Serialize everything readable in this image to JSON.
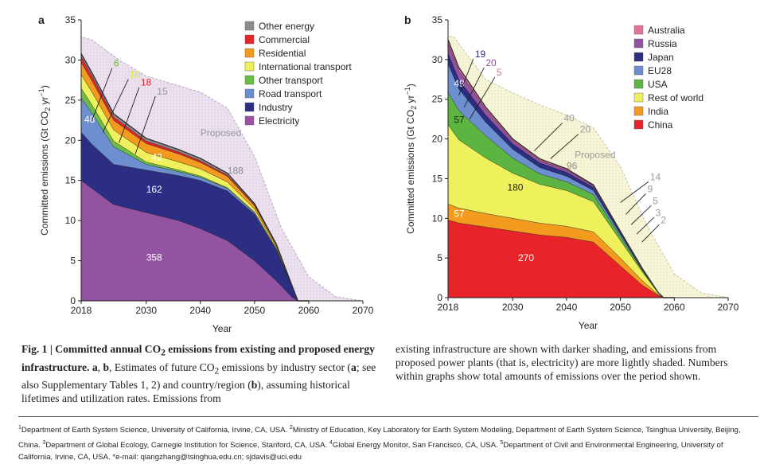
{
  "panels": [
    {
      "letter": "a",
      "ylabel_main": "Committed emissions (Gt CO",
      "ylabel_sub": "2",
      "ylabel_mid": " yr",
      "ylabel_sup": "−1",
      "ylabel_end": ")",
      "xlabel": "Year",
      "proposed_label": "Proposed"
    },
    {
      "letter": "b",
      "ylabel_main": "Committed emissions (Gt CO",
      "ylabel_sub": "2",
      "ylabel_mid": " yr",
      "ylabel_sup": "−1",
      "ylabel_end": ")",
      "xlabel": "Year",
      "proposed_label": "Proposed"
    }
  ],
  "chart_data": [
    {
      "type": "area",
      "panel": "a",
      "x_ticks": [
        "2018",
        "2030",
        "2040",
        "2050",
        "2060",
        "2070"
      ],
      "y_ticks": [
        "0",
        "5",
        "10",
        "15",
        "20",
        "25",
        "30",
        "35"
      ],
      "xlim": [
        2018,
        2070
      ],
      "ylim": [
        0,
        35
      ],
      "xlabel": "Year",
      "ylabel": "Committed emissions (Gt CO2 yr−1)",
      "legend": [
        {
          "name": "Other energy",
          "color": "#8c8c8c"
        },
        {
          "name": "Commercial",
          "color": "#e8232a"
        },
        {
          "name": "Residential",
          "color": "#f39b1e"
        },
        {
          "name": "International transport",
          "color": "#eef05c"
        },
        {
          "name": "Other transport",
          "color": "#6cbc45"
        },
        {
          "name": "Road transport",
          "color": "#6e8fcf"
        },
        {
          "name": "Industry",
          "color": "#2b2e83"
        },
        {
          "name": "Electricity",
          "color": "#9a52a1"
        }
      ],
      "legend_position": "top-right",
      "years": [
        2018,
        2020,
        2024,
        2030,
        2036,
        2040,
        2045,
        2050,
        2054,
        2057,
        2058,
        2060
      ],
      "series": [
        {
          "name": "Electricity",
          "color": "#9453a0",
          "values": [
            15.0,
            14.0,
            12.0,
            11.0,
            10.0,
            9.0,
            7.5,
            5.0,
            2.5,
            0.4,
            0.0,
            0.0
          ]
        },
        {
          "name": "Industry",
          "color": "#2b2e83",
          "values": [
            6.0,
            5.5,
            5.0,
            5.3,
            5.6,
            6.0,
            6.2,
            5.8,
            3.9,
            1.2,
            0.0,
            0.0
          ]
        },
        {
          "name": "Road transport",
          "color": "#6e8fcf",
          "values": [
            4.3,
            3.9,
            2.2,
            0.7,
            0.5,
            0.4,
            0.3,
            0.2,
            0.1,
            0.05,
            0.0,
            0.0
          ]
        },
        {
          "name": "Other transport",
          "color": "#6cbc45",
          "values": [
            1.2,
            1.0,
            0.7,
            0.3,
            0.2,
            0.15,
            0.1,
            0.05,
            0.03,
            0.0,
            0.0,
            0.0
          ]
        },
        {
          "name": "International transport",
          "color": "#eef05c",
          "values": [
            1.7,
            1.6,
            1.4,
            1.2,
            1.0,
            0.9,
            0.7,
            0.4,
            0.2,
            0.05,
            0.0,
            0.0
          ]
        },
        {
          "name": "Residential",
          "color": "#f39b1e",
          "values": [
            1.5,
            1.4,
            1.2,
            1.1,
            1.0,
            0.8,
            0.7,
            0.4,
            0.2,
            0.05,
            0.0,
            0.0
          ]
        },
        {
          "name": "Commercial",
          "color": "#e8232a",
          "values": [
            0.7,
            0.6,
            0.4,
            0.3,
            0.25,
            0.2,
            0.15,
            0.1,
            0.05,
            0.0,
            0.0,
            0.0
          ]
        },
        {
          "name": "Other energy",
          "color": "#8c8c8c",
          "values": [
            0.4,
            0.4,
            0.4,
            0.35,
            0.3,
            0.3,
            0.25,
            0.15,
            0.1,
            0.0,
            0.0,
            0.0
          ]
        }
      ],
      "proposed": {
        "years": [
          2018,
          2020,
          2025,
          2030,
          2035,
          2040,
          2045,
          2050,
          2055,
          2060,
          2065,
          2070
        ],
        "top": [
          32.9,
          32.5,
          30.0,
          28.0,
          27.0,
          26.0,
          24.0,
          18.0,
          9.0,
          3.0,
          0.5,
          0.0
        ]
      },
      "area_labels": [
        {
          "text": "358",
          "x": 2030,
          "y": 5.0,
          "color": "#ffffff"
        },
        {
          "text": "162",
          "x": 2030,
          "y": 13.5,
          "color": "#ffffff"
        },
        {
          "text": "48",
          "x": 2018,
          "y": 22.2,
          "color": "#ffffff"
        },
        {
          "text": "42",
          "x": 2031,
          "y": 17.5,
          "color": "#ffffff"
        },
        {
          "text": "188",
          "x": 2045,
          "y": 15.8,
          "color": "#8c8c8c"
        }
      ],
      "callouts": [
        {
          "text": "6",
          "color": "#6cbc45",
          "x": 2024,
          "y": 29.2
        },
        {
          "text": "10",
          "color": "#e2e22a",
          "x": 2027,
          "y": 27.8
        },
        {
          "text": "18",
          "color": "#e8232a",
          "x": 2029,
          "y": 26.8
        },
        {
          "text": "15",
          "color": "#9a9a9a",
          "x": 2032,
          "y": 25.7
        }
      ]
    },
    {
      "type": "area",
      "panel": "b",
      "x_ticks": [
        "2018",
        "2030",
        "2040",
        "2050",
        "2060",
        "2070"
      ],
      "y_ticks": [
        "0",
        "5",
        "10",
        "15",
        "20",
        "25",
        "30",
        "35"
      ],
      "xlim": [
        2018,
        2070
      ],
      "ylim": [
        0,
        35
      ],
      "xlabel": "Year",
      "ylabel": "Committed emissions (Gt CO2 yr−1)",
      "legend": [
        {
          "name": "Australia",
          "color": "#e5719b"
        },
        {
          "name": "Russia",
          "color": "#9453a0"
        },
        {
          "name": "Japan",
          "color": "#2b2e83"
        },
        {
          "name": "EU28",
          "color": "#6e8fcf"
        },
        {
          "name": "USA",
          "color": "#5cb441"
        },
        {
          "name": "Rest of world",
          "color": "#eef05c"
        },
        {
          "name": "India",
          "color": "#f39b1e"
        },
        {
          "name": "China",
          "color": "#e8232a"
        }
      ],
      "legend_position": "top-right",
      "years": [
        2018,
        2020,
        2025,
        2030,
        2035,
        2040,
        2045,
        2050,
        2054,
        2057,
        2058,
        2060
      ],
      "series": [
        {
          "name": "China",
          "color": "#e8232a",
          "values": [
            9.8,
            9.4,
            8.9,
            8.4,
            7.9,
            7.6,
            7.0,
            4.0,
            1.6,
            0.3,
            0.0,
            0.0
          ]
        },
        {
          "name": "India",
          "color": "#f39b1e",
          "values": [
            2.0,
            1.9,
            1.7,
            1.6,
            1.5,
            1.4,
            1.3,
            1.0,
            0.6,
            0.1,
            0.0,
            0.0
          ]
        },
        {
          "name": "Rest of world",
          "color": "#eef05c",
          "values": [
            10.0,
            8.6,
            7.0,
            5.7,
            4.9,
            4.5,
            3.8,
            2.2,
            1.1,
            0.2,
            0.0,
            0.0
          ]
        },
        {
          "name": "USA",
          "color": "#5cb441",
          "values": [
            4.1,
            3.7,
            2.8,
            1.9,
            1.3,
            1.1,
            0.9,
            0.5,
            0.2,
            0.05,
            0.0,
            0.0
          ]
        },
        {
          "name": "EU28",
          "color": "#6e8fcf",
          "values": [
            3.6,
            2.7,
            1.7,
            1.1,
            0.8,
            0.7,
            0.5,
            0.3,
            0.1,
            0.0,
            0.0,
            0.0
          ]
        },
        {
          "name": "Japan",
          "color": "#2b2e83",
          "values": [
            1.3,
            1.2,
            0.9,
            0.7,
            0.6,
            0.5,
            0.4,
            0.2,
            0.1,
            0.0,
            0.0,
            0.0
          ]
        },
        {
          "name": "Russia",
          "color": "#9453a0",
          "values": [
            1.2,
            1.1,
            0.7,
            0.4,
            0.3,
            0.3,
            0.2,
            0.1,
            0.05,
            0.0,
            0.0,
            0.0
          ]
        },
        {
          "name": "Australia",
          "color": "#e5719b",
          "values": [
            0.5,
            0.4,
            0.3,
            0.2,
            0.2,
            0.15,
            0.1,
            0.05,
            0.0,
            0.0,
            0.0,
            0.0
          ]
        }
      ],
      "proposed": {
        "years": [
          2018,
          2019,
          2025,
          2030,
          2035,
          2040,
          2045,
          2050,
          2055,
          2060,
          2065,
          2070
        ],
        "top": [
          32.9,
          32.9,
          27.5,
          25.8,
          24.3,
          23.0,
          21.4,
          16.5,
          9.0,
          3.0,
          0.6,
          0.0
        ]
      },
      "area_labels": [
        {
          "text": "270",
          "x": 2031,
          "y": 4.6,
          "color": "#ffffff"
        },
        {
          "text": "57",
          "x": 2018.5,
          "y": 10.2,
          "color": "#ffffff"
        },
        {
          "text": "180",
          "x": 2029,
          "y": 13.5,
          "color": "#231f20"
        },
        {
          "text": "57",
          "x": 2018.5,
          "y": 22.0,
          "color": "#231f20"
        },
        {
          "text": "49",
          "x": 2018.5,
          "y": 26.6,
          "color": "#ffffff"
        },
        {
          "text": "96",
          "x": 2040,
          "y": 16.2,
          "color": "#8c8c8c"
        }
      ],
      "callouts": [
        {
          "text": "19",
          "color": "#2b2e83",
          "x": 2023,
          "y": 30.3
        },
        {
          "text": "20",
          "color": "#9453a0",
          "x": 2025,
          "y": 29.2
        },
        {
          "text": "5",
          "color": "#e5719b",
          "x": 2027,
          "y": 28.0
        },
        {
          "text": "40",
          "color": "#9a9a9a",
          "x": 2039.5,
          "y": 22.2
        },
        {
          "text": "20",
          "color": "#9a9a9a",
          "x": 2042.5,
          "y": 20.8
        },
        {
          "text": "14",
          "color": "#9a9a9a",
          "x": 2055.5,
          "y": 14.8
        },
        {
          "text": "9",
          "color": "#9a9a9a",
          "x": 2055,
          "y": 13.3
        },
        {
          "text": "5",
          "color": "#9a9a9a",
          "x": 2056,
          "y": 11.8
        },
        {
          "text": "3",
          "color": "#9a9a9a",
          "x": 2056.5,
          "y": 10.3
        },
        {
          "text": "2",
          "color": "#9a9a9a",
          "x": 2057.5,
          "y": 9.4
        }
      ]
    }
  ],
  "caption": {
    "fig_label": "Fig. 1 | Committed annual CO",
    "fig_label_sub": "2",
    "fig_title_rest": " emissions from existing and proposed energy infrastructure.",
    "ab_bold": "a",
    "comma": ", ",
    "b_bold": "b",
    "text1_pre": ", Estimates of future CO",
    "text1_sub": "2",
    "text1_post": " emissions by industry sector (",
    "a_bold_2": "a",
    "text2": "; see also Supplementary Tables 1, 2) and country/region (",
    "b_bold_2": "b",
    "text3": "), assuming historical lifetimes and utilization rates. Emissions from",
    "right": "existing infrastructure are shown with darker shading, and emissions from proposed power plants (that is, electricity) are more lightly shaded. Numbers within graphs show total amounts of emissions over the period shown."
  },
  "affiliations": {
    "s1": "1",
    "t1": "Department of Earth System Science, University of California, Irvine, CA, USA. ",
    "s2": "2",
    "t2": "Ministry of Education, Key Laboratory for Earth System Modeling, Department of Earth System Science, Tsinghua University, Beijing, China. ",
    "s3": "3",
    "t3": "Department of Global Ecology, Carnegie Institution for Science, Stanford, CA, USA. ",
    "s4": "4",
    "t4": "Global Energy Monitor, San Francisco, CA, USA. ",
    "s5": "5",
    "t5": "Department of Civil and Environmental Engineering, University of California, Irvine, CA, USA. ",
    "t6": "*e-mail: qiangzhang@tsinghua.edu.cn; sjdavis@uci.edu"
  }
}
